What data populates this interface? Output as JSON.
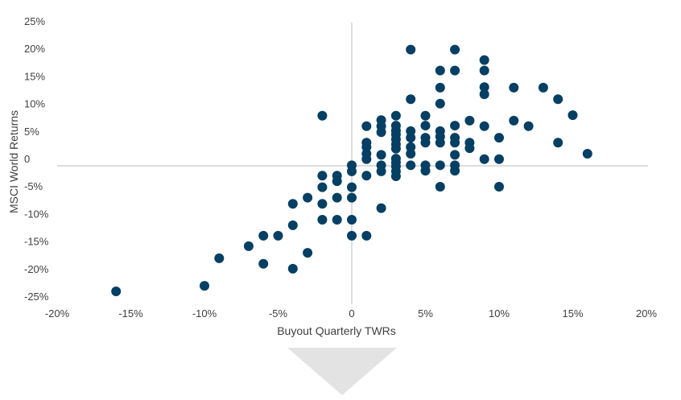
{
  "chart_data": {
    "type": "scatter",
    "title": "",
    "xlabel": "Buyout Quarterly TWRs",
    "ylabel": "MSCI World Returns",
    "xlim": [
      -20,
      20
    ],
    "ylim": [
      -25,
      25
    ],
    "x_ticks": [
      -20,
      -15,
      -10,
      -5,
      0,
      5,
      10,
      15,
      20
    ],
    "x_tick_labels": [
      "-20%",
      "-15%",
      "-10%",
      "-5%",
      "0",
      "5%",
      "10%",
      "15%",
      "20%"
    ],
    "y_ticks": [
      25,
      20,
      15,
      10,
      5,
      0,
      -5,
      -10,
      -15,
      -20,
      -25
    ],
    "y_tick_labels": [
      "25%",
      "20%",
      "15%",
      "10%",
      "5%",
      "0",
      "-5%",
      "-10%",
      "-15%",
      "-20%",
      "-25%"
    ],
    "grid": false,
    "legend": "none",
    "colors": {
      "points": "#053f63",
      "axis": "#c8c8c8",
      "arrow": "#e3e3e3"
    },
    "points": [
      [
        -16,
        -22.8
      ],
      [
        -10,
        -21.8
      ],
      [
        -9,
        -16.8
      ],
      [
        -7,
        -14.6
      ],
      [
        -6,
        -12.7
      ],
      [
        -6,
        -17.8
      ],
      [
        -5,
        -12.7
      ],
      [
        -4,
        -18.7
      ],
      [
        -4,
        -10.8
      ],
      [
        -4,
        -6.9
      ],
      [
        -3,
        -15.8
      ],
      [
        -3,
        -5.8
      ],
      [
        -2,
        9.1
      ],
      [
        -2,
        -1.8
      ],
      [
        -2,
        -3.9
      ],
      [
        -2,
        -6.9
      ],
      [
        -2,
        -9.8
      ],
      [
        -1,
        -1.8
      ],
      [
        -1,
        -2.8
      ],
      [
        -1,
        -5.8
      ],
      [
        -1,
        -9.8
      ],
      [
        0,
        0.1
      ],
      [
        0,
        -1.0
      ],
      [
        0,
        -3.9
      ],
      [
        0,
        -5.8
      ],
      [
        0,
        -9.8
      ],
      [
        0,
        -12.7
      ],
      [
        1,
        7.2
      ],
      [
        1,
        4.2
      ],
      [
        1,
        3.4
      ],
      [
        1,
        2.2
      ],
      [
        1,
        1.2
      ],
      [
        1,
        -1.8
      ],
      [
        1,
        -12.7
      ],
      [
        2,
        8.3
      ],
      [
        2,
        7.2
      ],
      [
        2,
        6.1
      ],
      [
        2,
        2.0
      ],
      [
        2,
        0.1
      ],
      [
        2,
        -1.0
      ],
      [
        2,
        -7.7
      ],
      [
        3,
        9.1
      ],
      [
        3,
        7.3
      ],
      [
        3,
        6.4
      ],
      [
        3,
        5.7
      ],
      [
        3,
        4.8
      ],
      [
        3,
        3.9
      ],
      [
        3,
        3.1
      ],
      [
        3,
        1.3
      ],
      [
        3,
        0.6
      ],
      [
        3,
        -0.1
      ],
      [
        3,
        -1.0
      ],
      [
        3,
        -1.9
      ],
      [
        4,
        21.1
      ],
      [
        4,
        12.1
      ],
      [
        4,
        6.3
      ],
      [
        4,
        5.1
      ],
      [
        4,
        3.4
      ],
      [
        4,
        2.2
      ],
      [
        4,
        0.1
      ],
      [
        5,
        9.1
      ],
      [
        5,
        7.3
      ],
      [
        5,
        5.1
      ],
      [
        5,
        4.2
      ],
      [
        5,
        0.1
      ],
      [
        5,
        -0.9
      ],
      [
        6,
        17.3
      ],
      [
        6,
        14.2
      ],
      [
        6,
        11.3
      ],
      [
        6,
        6.3
      ],
      [
        6,
        5.3
      ],
      [
        6,
        4.2
      ],
      [
        6,
        0.1
      ],
      [
        6,
        -3.8
      ],
      [
        7,
        21.1
      ],
      [
        7,
        17.3
      ],
      [
        7,
        7.3
      ],
      [
        7,
        5.1
      ],
      [
        7,
        4.2
      ],
      [
        7,
        2.0
      ],
      [
        7,
        0.1
      ],
      [
        7,
        -0.9
      ],
      [
        8,
        8.2
      ],
      [
        8,
        4.2
      ],
      [
        8,
        3.2
      ],
      [
        9,
        19.2
      ],
      [
        9,
        17.3
      ],
      [
        9,
        14.3
      ],
      [
        9,
        13.0
      ],
      [
        9,
        7.2
      ],
      [
        9,
        1.2
      ],
      [
        10,
        5.1
      ],
      [
        10,
        1.2
      ],
      [
        10,
        -3.8
      ],
      [
        11,
        14.2
      ],
      [
        11,
        8.2
      ],
      [
        12,
        7.2
      ],
      [
        13,
        14.2
      ],
      [
        14,
        12.1
      ],
      [
        14,
        4.2
      ],
      [
        15,
        9.2
      ],
      [
        16,
        2.2
      ]
    ]
  }
}
